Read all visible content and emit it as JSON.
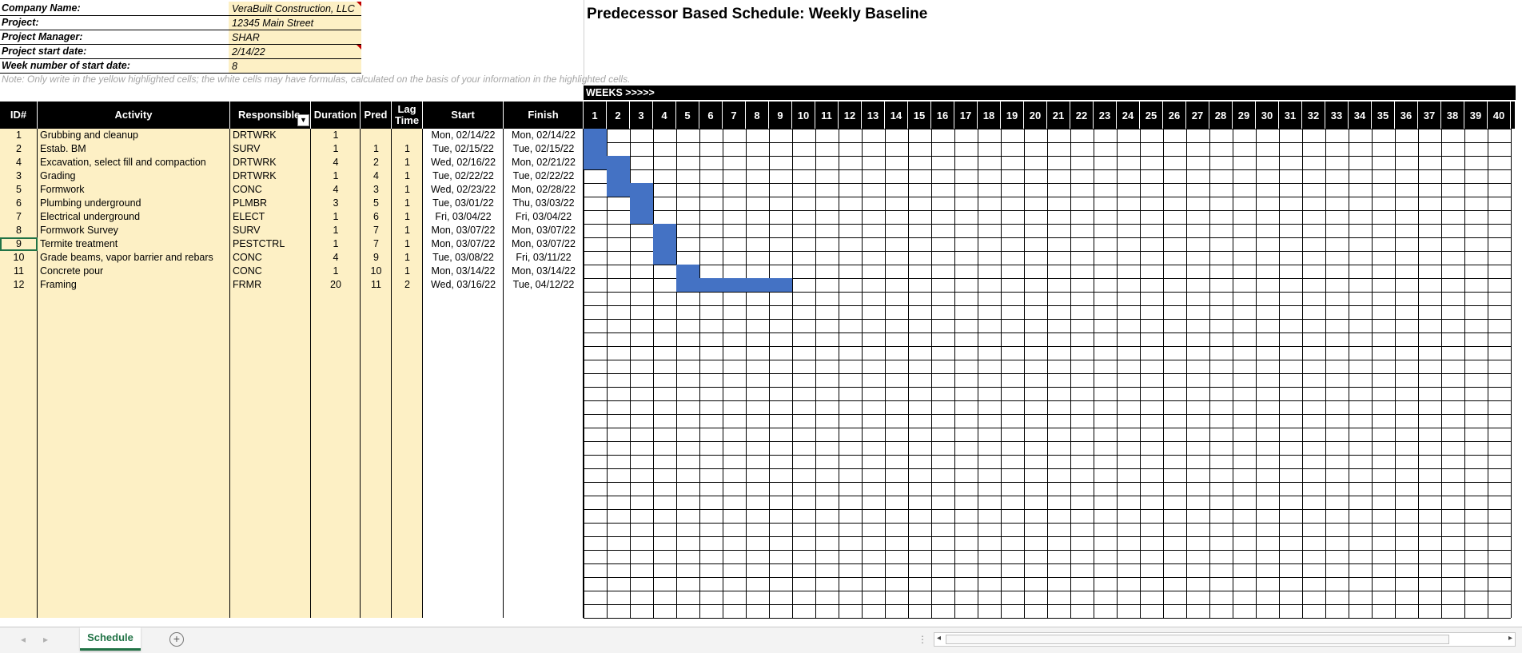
{
  "title": "Predecessor Based Schedule: Weekly Baseline",
  "info": [
    {
      "label": "Company Name:",
      "value": "VeraBuilt Construction, LLC"
    },
    {
      "label": "Project:",
      "value": "12345 Main Street"
    },
    {
      "label": "Project Manager:",
      "value": "SHAR"
    },
    {
      "label": "Project start date:",
      "value": "2/14/22"
    },
    {
      "label": "Week number of start date:",
      "value": "8"
    }
  ],
  "note": "Note: Only write in the yellow highlighted cells; the white cells may have formulas, calculated on the basis of your information in the highlighted cells.",
  "weeks_banner": "WEEKS >>>>>",
  "headers": {
    "id": "ID#",
    "activity": "Activity",
    "responsible": "Responsible",
    "duration": "Duration",
    "pred": "Pred",
    "lag": "Lag Time",
    "start": "Start",
    "finish": "Finish"
  },
  "weeks": [
    "1",
    "2",
    "3",
    "4",
    "5",
    "6",
    "7",
    "8",
    "9",
    "10",
    "11",
    "12",
    "13",
    "14",
    "15",
    "16",
    "17",
    "18",
    "19",
    "20",
    "21",
    "22",
    "23",
    "24",
    "25",
    "26",
    "27",
    "28",
    "29",
    "30",
    "31",
    "32",
    "33",
    "34",
    "35",
    "36",
    "37",
    "38",
    "39",
    "40"
  ],
  "rows": [
    {
      "id": "1",
      "activity": "Grubbing and cleanup",
      "responsible": "DRTWRK",
      "duration": "1",
      "pred": "",
      "lag": "",
      "start": "Mon, 02/14/22",
      "finish": "Mon, 02/14/22",
      "bar_start": 1,
      "bar_end": 1
    },
    {
      "id": "2",
      "activity": "Estab. BM",
      "responsible": "SURV",
      "duration": "1",
      "pred": "1",
      "lag": "1",
      "start": "Tue, 02/15/22",
      "finish": "Tue, 02/15/22",
      "bar_start": 1,
      "bar_end": 1
    },
    {
      "id": "4",
      "activity": "Excavation, select fill and compaction",
      "responsible": "DRTWRK",
      "duration": "4",
      "pred": "2",
      "lag": "1",
      "start": "Wed, 02/16/22",
      "finish": "Mon, 02/21/22",
      "bar_start": 1,
      "bar_end": 2
    },
    {
      "id": "3",
      "activity": "Grading",
      "responsible": "DRTWRK",
      "duration": "1",
      "pred": "4",
      "lag": "1",
      "start": "Tue, 02/22/22",
      "finish": "Tue, 02/22/22",
      "bar_start": 2,
      "bar_end": 2
    },
    {
      "id": "5",
      "activity": "Formwork",
      "responsible": "CONC",
      "duration": "4",
      "pred": "3",
      "lag": "1",
      "start": "Wed, 02/23/22",
      "finish": "Mon, 02/28/22",
      "bar_start": 2,
      "bar_end": 3
    },
    {
      "id": "6",
      "activity": "Plumbing underground",
      "responsible": "PLMBR",
      "duration": "3",
      "pred": "5",
      "lag": "1",
      "start": "Tue, 03/01/22",
      "finish": "Thu, 03/03/22",
      "bar_start": 3,
      "bar_end": 3
    },
    {
      "id": "7",
      "activity": "Electrical underground",
      "responsible": "ELECT",
      "duration": "1",
      "pred": "6",
      "lag": "1",
      "start": "Fri, 03/04/22",
      "finish": "Fri, 03/04/22",
      "bar_start": 3,
      "bar_end": 3
    },
    {
      "id": "8",
      "activity": "Formwork Survey",
      "responsible": "SURV",
      "duration": "1",
      "pred": "7",
      "lag": "1",
      "start": "Mon, 03/07/22",
      "finish": "Mon, 03/07/22",
      "bar_start": 4,
      "bar_end": 4
    },
    {
      "id": "9",
      "activity": "Termite treatment",
      "responsible": "PESTCTRL",
      "duration": "1",
      "pred": "7",
      "lag": "1",
      "start": "Mon, 03/07/22",
      "finish": "Mon, 03/07/22",
      "bar_start": 4,
      "bar_end": 4
    },
    {
      "id": "10",
      "activity": "Grade beams, vapor barrier and rebars",
      "responsible": "CONC",
      "duration": "4",
      "pred": "9",
      "lag": "1",
      "start": "Tue, 03/08/22",
      "finish": "Fri, 03/11/22",
      "bar_start": 4,
      "bar_end": 4
    },
    {
      "id": "11",
      "activity": "Concrete pour",
      "responsible": "CONC",
      "duration": "1",
      "pred": "10",
      "lag": "1",
      "start": "Mon, 03/14/22",
      "finish": "Mon, 03/14/22",
      "bar_start": 5,
      "bar_end": 5
    },
    {
      "id": "12",
      "activity": "Framing",
      "responsible": "FRMR",
      "duration": "20",
      "pred": "11",
      "lag": "2",
      "start": "Wed, 03/16/22",
      "finish": "Tue, 04/12/22",
      "bar_start": 5,
      "bar_end": 9
    }
  ],
  "sheet_tab": "Schedule",
  "colors": {
    "bar": "#4472c4",
    "highlight": "#fdf0c5",
    "tab_accent": "#217346"
  }
}
